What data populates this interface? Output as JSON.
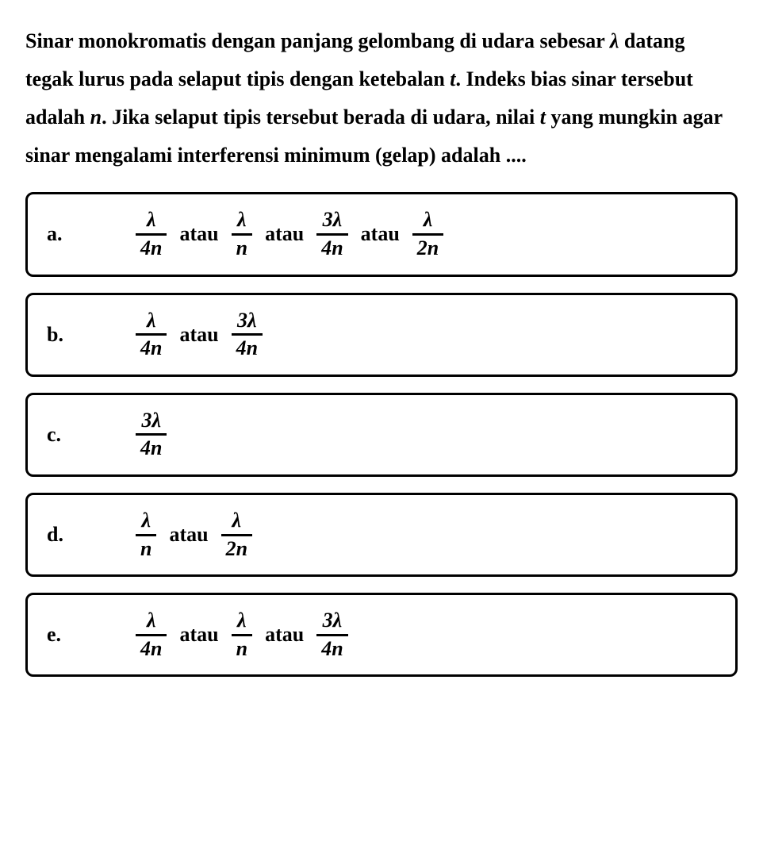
{
  "typography": {
    "question_fontsize": 26,
    "option_fontsize": 26,
    "letter_fontsize": 26,
    "frac_fontsize": 26,
    "frac_border_width": 3,
    "option_border_width": 3,
    "color_text": "#000000",
    "color_bg": "#ffffff",
    "color_border": "#000000"
  },
  "question": {
    "part1": "Sinar monokromatis dengan panjang gelombang di udara sebesar ",
    "lambda": "λ",
    "part2": " datang tegak lurus pada selaput tipis dengan ketebalan ",
    "t1": "t",
    "part3": ". Indeks bias sinar tersebut adalah ",
    "n1": "n",
    "part4": ". Jika selaput tipis tersebut berada di udara, nilai ",
    "t2": "t",
    "part5": " yang mungkin agar sinar mengalami interferensi minimum (gelap) adalah ...."
  },
  "shared": {
    "atau": "atau"
  },
  "options": {
    "a": {
      "letter": "a.",
      "f1": {
        "num": "λ",
        "den": "4n"
      },
      "f2": {
        "num": "λ",
        "den": "n"
      },
      "f3": {
        "num": "3λ",
        "den": "4n"
      },
      "f4": {
        "num": "λ",
        "den": "2n"
      }
    },
    "b": {
      "letter": "b.",
      "f1": {
        "num": "λ",
        "den": "4n"
      },
      "f2": {
        "num": "3λ",
        "den": "4n"
      }
    },
    "c": {
      "letter": "c.",
      "f1": {
        "num": "3λ",
        "den": "4n"
      }
    },
    "d": {
      "letter": "d.",
      "f1": {
        "num": "λ",
        "den": "n"
      },
      "f2": {
        "num": "λ",
        "den": "2n"
      }
    },
    "e": {
      "letter": "e.",
      "f1": {
        "num": "λ",
        "den": "4n"
      },
      "f2": {
        "num": "λ",
        "den": "n"
      },
      "f3": {
        "num": "3λ",
        "den": "4n"
      }
    }
  }
}
